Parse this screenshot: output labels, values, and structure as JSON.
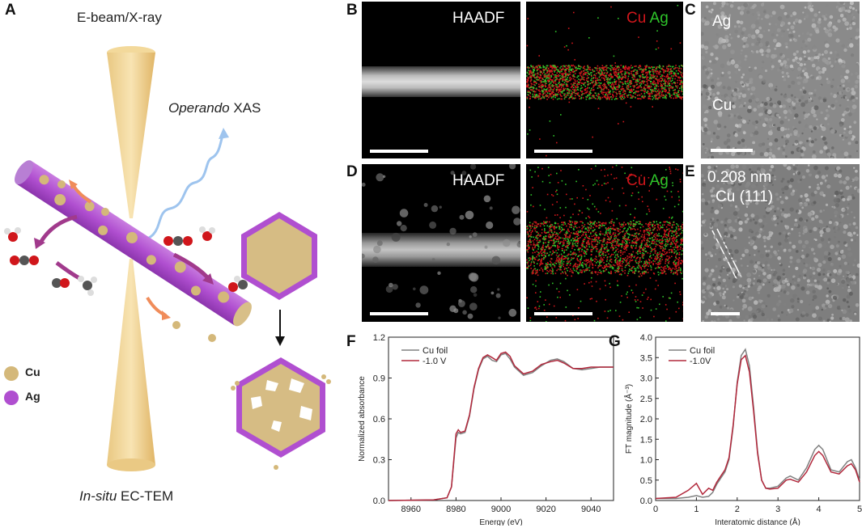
{
  "panel_letters": {
    "a": "A",
    "b": "B",
    "c": "C",
    "d": "D",
    "e": "E",
    "f": "F",
    "g": "G"
  },
  "schematic": {
    "top_label": "E-beam/X-ray",
    "xas_italic": "Operando",
    "xas_rest": " XAS",
    "bottom_italic": "In-situ",
    "bottom_rest": " EC-TEM",
    "legend": [
      {
        "label": "Cu",
        "color": "#d4b87a"
      },
      {
        "label": "Ag",
        "color": "#b04fd0"
      }
    ]
  },
  "micrographs": {
    "b_left_label": "HAADF",
    "b_right_cu": "Cu",
    "b_right_ag": "Ag",
    "c_top_label": "Ag",
    "c_bottom_label": "Cu",
    "d_left_label": "HAADF",
    "d_right_cu": "Cu",
    "d_right_ag": "Ag",
    "e_line1": "0.208 nm",
    "e_line2": "Cu (111)"
  },
  "colors": {
    "cu_map": "#d0161b",
    "ag_map": "#2ec42a",
    "series_foil": "#808080",
    "series_v": "#b2283c"
  },
  "chart_data": [
    {
      "type": "line",
      "panel": "F",
      "xlabel": "Energy (eV)",
      "ylabel": "Normalized absorbance",
      "xlim": [
        8950,
        9050
      ],
      "ylim": [
        0.0,
        1.2
      ],
      "xticks": [
        8960,
        8980,
        9000,
        9020,
        9040
      ],
      "yticks": [
        0.0,
        0.3,
        0.6,
        0.9,
        1.2
      ],
      "xtick_labels": [
        "8960",
        "8980",
        "9000",
        "9020",
        "9040"
      ],
      "ytick_labels": [
        "0.0",
        "0.3",
        "0.6",
        "0.9",
        "1.2"
      ],
      "legend_position": "top-left",
      "series": [
        {
          "name": "Cu foil",
          "color": "#808080",
          "x": [
            8950,
            8970,
            8976,
            8978,
            8980,
            8981,
            8982,
            8984,
            8986,
            8988,
            8990,
            8992,
            8994,
            8996,
            8998,
            9000,
            9002,
            9004,
            9006,
            9010,
            9014,
            9018,
            9022,
            9025,
            9028,
            9032,
            9036,
            9040,
            9044,
            9048,
            9050
          ],
          "y": [
            0.0,
            0.005,
            0.02,
            0.1,
            0.46,
            0.5,
            0.49,
            0.5,
            0.62,
            0.82,
            0.96,
            1.04,
            1.06,
            1.03,
            1.02,
            1.07,
            1.08,
            1.04,
            0.98,
            0.92,
            0.94,
            0.99,
            1.03,
            1.04,
            1.02,
            0.97,
            0.96,
            0.97,
            0.98,
            0.98,
            0.98
          ]
        },
        {
          "name": "-1.0 V",
          "color": "#b2283c",
          "x": [
            8950,
            8970,
            8976,
            8978,
            8980,
            8981,
            8982,
            8984,
            8986,
            8988,
            8990,
            8992,
            8994,
            8996,
            8998,
            9000,
            9002,
            9004,
            9006,
            9010,
            9014,
            9018,
            9022,
            9025,
            9028,
            9032,
            9036,
            9040,
            9044,
            9048,
            9050
          ],
          "y": [
            0.0,
            0.005,
            0.02,
            0.1,
            0.49,
            0.52,
            0.5,
            0.51,
            0.63,
            0.83,
            0.97,
            1.05,
            1.07,
            1.05,
            1.03,
            1.08,
            1.09,
            1.06,
            0.99,
            0.93,
            0.95,
            1.0,
            1.02,
            1.03,
            1.01,
            0.97,
            0.97,
            0.98,
            0.98,
            0.98,
            0.98
          ]
        }
      ]
    },
    {
      "type": "line",
      "panel": "G",
      "xlabel": "Interatomic distance (Å)",
      "ylabel": "FT magnitude (Å⁻³)",
      "xlim": [
        0,
        5
      ],
      "ylim": [
        0.0,
        4.0
      ],
      "xticks": [
        0,
        1,
        2,
        3,
        4,
        5
      ],
      "yticks": [
        0.0,
        0.5,
        1.0,
        1.5,
        2.0,
        2.5,
        3.0,
        3.5,
        4.0
      ],
      "xtick_labels": [
        "0",
        "1",
        "2",
        "3",
        "4",
        "5"
      ],
      "ytick_labels": [
        "0.0",
        "0.5",
        "1.0",
        "1.5",
        "2.0",
        "2.5",
        "3.0",
        "3.5",
        "4.0"
      ],
      "legend_position": "top-left",
      "series": [
        {
          "name": "Cu foil",
          "color": "#808080",
          "x": [
            0,
            0.5,
            0.8,
            1.0,
            1.15,
            1.3,
            1.4,
            1.5,
            1.6,
            1.7,
            1.8,
            1.9,
            2.0,
            2.1,
            2.2,
            2.3,
            2.4,
            2.5,
            2.6,
            2.7,
            2.8,
            3.0,
            3.2,
            3.3,
            3.5,
            3.7,
            3.9,
            4.0,
            4.1,
            4.3,
            4.5,
            4.7,
            4.8,
            4.9,
            5.0
          ],
          "y": [
            0.05,
            0.05,
            0.08,
            0.12,
            0.08,
            0.1,
            0.2,
            0.4,
            0.55,
            0.7,
            1.0,
            1.8,
            2.9,
            3.55,
            3.7,
            3.3,
            2.3,
            1.2,
            0.5,
            0.3,
            0.3,
            0.35,
            0.55,
            0.6,
            0.5,
            0.8,
            1.25,
            1.35,
            1.25,
            0.75,
            0.7,
            0.95,
            1.0,
            0.8,
            0.5
          ]
        },
        {
          "name": "-1.0V",
          "color": "#b2283c",
          "x": [
            0,
            0.5,
            0.8,
            1.0,
            1.15,
            1.3,
            1.4,
            1.5,
            1.6,
            1.7,
            1.8,
            1.9,
            2.0,
            2.1,
            2.2,
            2.3,
            2.4,
            2.5,
            2.6,
            2.7,
            2.8,
            3.0,
            3.2,
            3.3,
            3.5,
            3.7,
            3.9,
            4.0,
            4.1,
            4.3,
            4.5,
            4.7,
            4.8,
            4.9,
            5.0
          ],
          "y": [
            0.05,
            0.08,
            0.25,
            0.42,
            0.15,
            0.3,
            0.25,
            0.45,
            0.6,
            0.75,
            1.05,
            1.85,
            2.85,
            3.45,
            3.55,
            3.15,
            2.2,
            1.15,
            0.5,
            0.3,
            0.28,
            0.3,
            0.5,
            0.52,
            0.45,
            0.7,
            1.1,
            1.2,
            1.1,
            0.7,
            0.65,
            0.85,
            0.9,
            0.75,
            0.45
          ]
        }
      ]
    }
  ]
}
